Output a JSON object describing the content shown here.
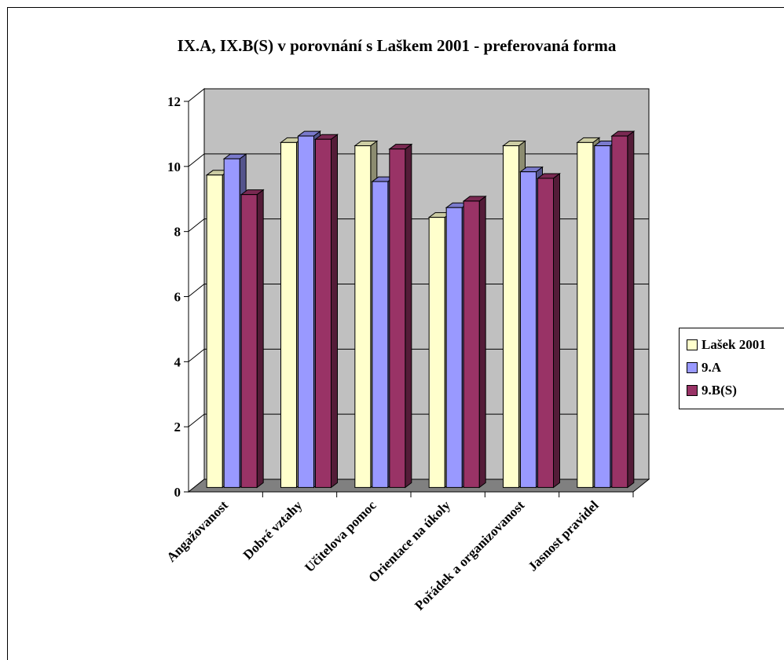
{
  "chart_data": {
    "type": "bar",
    "title": "IX.A, IX.B(S) v porovnání s Laškem 2001 - preferovaná forma",
    "categories": [
      "Angažovanost",
      "Dobré vztahy",
      "Učitelova pomoc",
      "Orientace na úkoly",
      "Pořádek a organizovanost",
      "Jasnost pravidel"
    ],
    "series": [
      {
        "name": "Lašek 2001",
        "color": "#ffffcc",
        "values": [
          9.6,
          10.6,
          10.5,
          8.3,
          10.5,
          10.6
        ]
      },
      {
        "name": "9.A",
        "color": "#9999ff",
        "values": [
          10.1,
          10.8,
          9.4,
          8.6,
          9.7,
          10.5
        ]
      },
      {
        "name": "9.B(S)",
        "color": "#993366",
        "values": [
          9.0,
          10.7,
          10.4,
          8.8,
          9.5,
          10.8
        ]
      }
    ],
    "ylim": [
      0,
      12
    ],
    "yticks": [
      0,
      2,
      4,
      6,
      8,
      10,
      12
    ],
    "xlabel": "",
    "ylabel": "",
    "grid": true,
    "legend_position": "right",
    "wall_color": "#c0c0c0",
    "floor_color": "#808080"
  }
}
